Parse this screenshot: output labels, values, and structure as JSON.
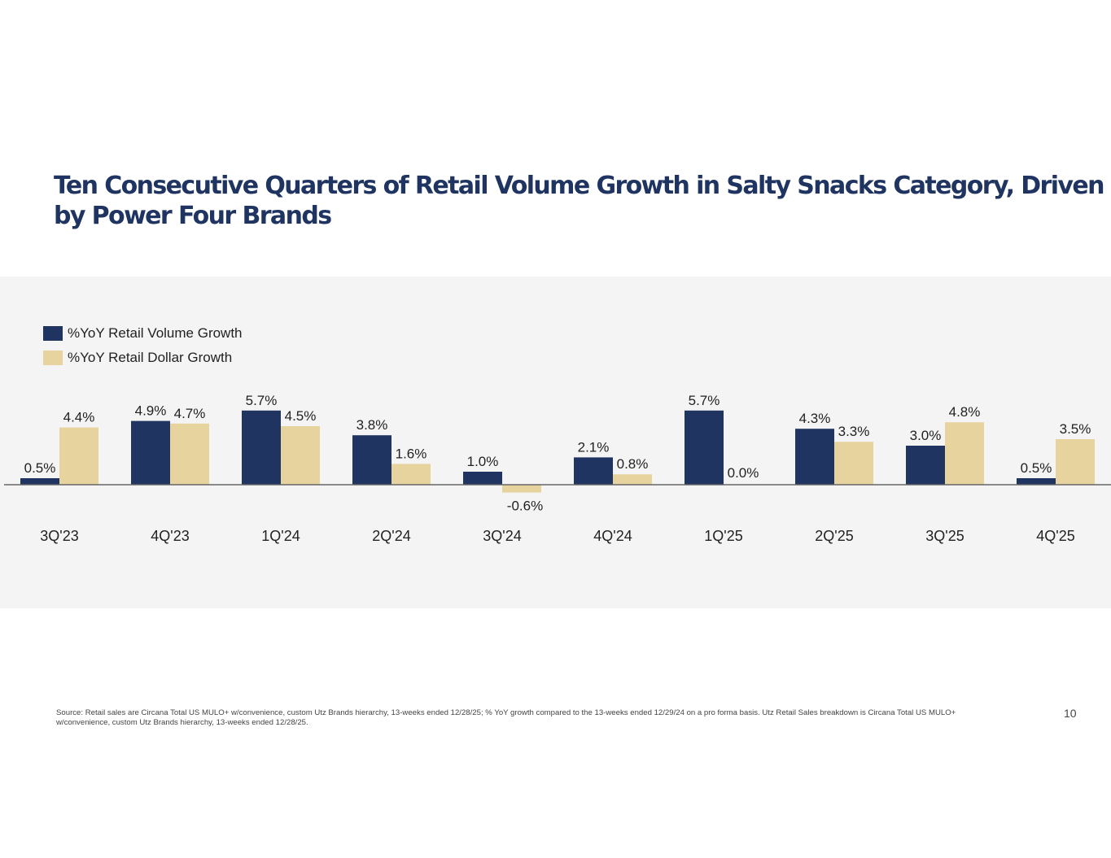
{
  "title": "Ten Consecutive Quarters of Retail Volume Growth in Salty Snacks Category,  Driven by Power Four Brands",
  "footnote": "Source: Retail sales are Circana Total US MULO+ w/convenience, custom Utz Brands hierarchy, 13-weeks ended 12/28/25; % YoY growth compared to the 13-weeks ended 12/29/24 on a pro forma basis. Utz Retail Sales breakdown is Circana Total US MULO+ w/convenience, custom Utz Brands hierarchy, 13-weeks ended 12/28/25.",
  "page_number": "10",
  "colors": {
    "volume": "#1f3461",
    "dollar": "#e6d39e",
    "axis": "#666666",
    "label": "#222222"
  },
  "chart_data": {
    "type": "bar",
    "title": "",
    "xlabel": "",
    "ylabel": "",
    "categories": [
      "3Q'23",
      "4Q'23",
      "1Q'24",
      "2Q'24",
      "3Q'24",
      "4Q'24",
      "1Q'25",
      "2Q'25",
      "3Q'25",
      "4Q'25"
    ],
    "series": [
      {
        "name": "%YoY Retail Volume Growth",
        "values": [
          0.5,
          4.9,
          5.7,
          3.8,
          1.0,
          2.1,
          5.7,
          4.3,
          3.0,
          0.5
        ],
        "labels": [
          "0.5%",
          "4.9%",
          "5.7%",
          "3.8%",
          "1.0%",
          "2.1%",
          "5.7%",
          "4.3%",
          "3.0%",
          "0.5%"
        ]
      },
      {
        "name": "%YoY Retail Dollar Growth",
        "values": [
          4.4,
          4.7,
          4.5,
          1.6,
          -0.6,
          0.8,
          0.0,
          3.3,
          4.8,
          3.5
        ],
        "labels": [
          "4.4%",
          "4.7%",
          "4.5%",
          "1.6%",
          "-0.6%",
          "0.8%",
          "0.0%",
          "3.3%",
          "4.8%",
          "3.5%"
        ]
      }
    ],
    "legend_position": "top-left",
    "grid": false,
    "y_axis_visible": false,
    "ylim": [
      -1,
      6
    ]
  }
}
